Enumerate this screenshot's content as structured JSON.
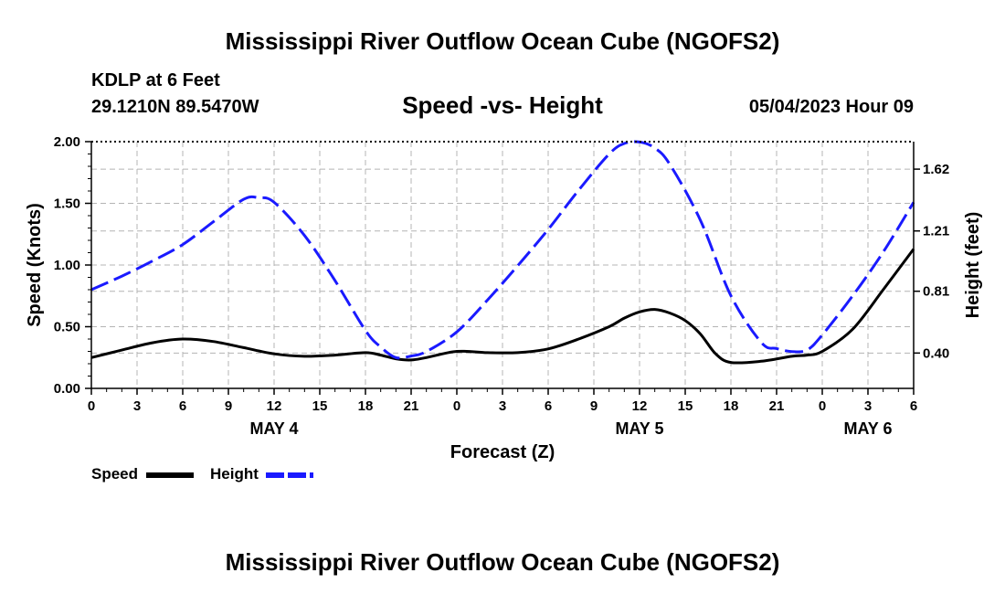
{
  "page": {
    "title": "Mississippi River Outflow Ocean Cube (NGOFS2)",
    "footer_title": "Mississippi River Outflow Ocean Cube (NGOFS2)",
    "station": "KDLP at 6 Feet",
    "coordinates": "29.1210N  89.5470W",
    "subtitle": "Speed -vs- Height",
    "datetime": "05/04/2023 Hour 09"
  },
  "legend": {
    "speed_label": "Speed",
    "height_label": "Height"
  },
  "chart_data": {
    "type": "line",
    "title": "Speed -vs- Height",
    "xlabel": "Forecast (Z)",
    "ylabel": "Speed (Knots)",
    "y2label": "Height (feet)",
    "x_range": [
      0,
      54
    ],
    "x_ticks": [
      0,
      3,
      6,
      9,
      12,
      15,
      18,
      21,
      24,
      27,
      30,
      33,
      36,
      39,
      42,
      45,
      48,
      51,
      54
    ],
    "x_tick_labels": [
      "0",
      "3",
      "6",
      "9",
      "12",
      "15",
      "18",
      "21",
      "0",
      "3",
      "6",
      "9",
      "12",
      "15",
      "18",
      "21",
      "0",
      "3",
      "6"
    ],
    "day_labels": [
      {
        "hour": 12,
        "label": "MAY 4"
      },
      {
        "hour": 36,
        "label": "MAY 5"
      },
      {
        "hour": 51,
        "label": "MAY 6"
      }
    ],
    "ylim": [
      0,
      2.0
    ],
    "y_ticks": [
      0.0,
      0.5,
      1.0,
      1.5,
      2.0
    ],
    "y_tick_labels": [
      "0.00",
      "0.50",
      "1.00",
      "1.50",
      "2.00"
    ],
    "y2lim": [
      0.1655,
      1.8024
    ],
    "y2_ticks": [
      0.4,
      0.81,
      1.21,
      1.62
    ],
    "y2_tick_labels": [
      "0.40",
      "0.81",
      "1.21",
      "1.62"
    ],
    "grid": true,
    "colors": {
      "speed": "#000000",
      "height": "#1a1aff",
      "grid": "#b4b4b4"
    },
    "series": [
      {
        "name": "Speed",
        "axis": "left",
        "x": [
          0,
          2,
          4,
          6,
          8,
          10,
          12,
          14,
          16,
          18,
          19,
          20,
          21,
          22,
          24,
          26,
          28,
          30,
          32,
          34,
          35,
          36,
          37,
          38,
          39,
          40,
          41,
          42,
          44,
          46,
          47,
          48,
          50,
          52,
          54
        ],
        "values": [
          0.25,
          0.31,
          0.37,
          0.4,
          0.38,
          0.33,
          0.28,
          0.26,
          0.27,
          0.29,
          0.27,
          0.24,
          0.23,
          0.25,
          0.3,
          0.29,
          0.29,
          0.32,
          0.4,
          0.5,
          0.57,
          0.62,
          0.64,
          0.61,
          0.55,
          0.44,
          0.28,
          0.21,
          0.22,
          0.26,
          0.27,
          0.3,
          0.48,
          0.8,
          1.13
        ]
      },
      {
        "name": "Height",
        "axis": "right",
        "x": [
          0,
          2,
          4,
          6,
          8,
          10,
          11,
          12,
          14,
          16,
          18,
          19,
          20,
          21,
          22,
          24,
          26,
          28,
          30,
          32,
          34,
          35,
          36,
          37,
          38,
          40,
          42,
          44,
          45,
          46,
          47,
          48,
          50,
          52,
          54
        ],
        "values": [
          0.82,
          0.91,
          1.01,
          1.12,
          1.27,
          1.42,
          1.43,
          1.4,
          1.18,
          0.88,
          0.55,
          0.44,
          0.37,
          0.38,
          0.41,
          0.54,
          0.75,
          0.98,
          1.22,
          1.48,
          1.72,
          1.79,
          1.8,
          1.76,
          1.65,
          1.28,
          0.78,
          0.47,
          0.43,
          0.41,
          0.42,
          0.52,
          0.78,
          1.07,
          1.4
        ]
      }
    ]
  }
}
